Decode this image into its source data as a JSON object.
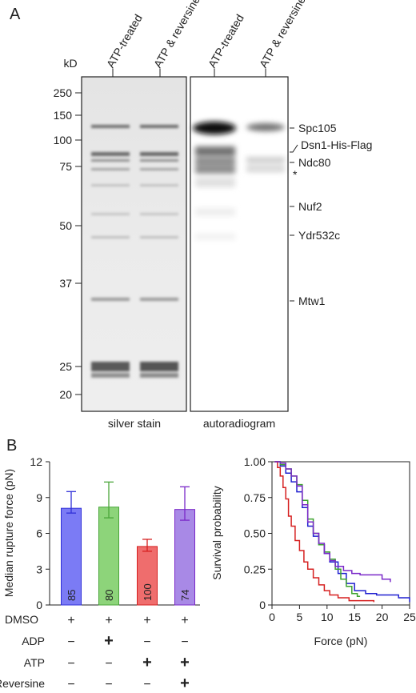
{
  "panel_a": {
    "letter": "A",
    "kd_label": "kD",
    "lanes": [
      "ATP-treated",
      "ATP & reversine",
      "ATP-treated",
      "ATP & reversine"
    ],
    "markers": [
      250,
      150,
      100,
      75,
      50,
      37,
      25,
      20
    ],
    "gel_labels": [
      "silver stain",
      "autoradiogram"
    ],
    "protein_labels": [
      "Spc105",
      "Dsn1-His-Flag",
      "Ndc80",
      "*",
      "Nuf2",
      "Ydr532c",
      "Mtw1"
    ]
  },
  "panel_b": {
    "letter": "B"
  },
  "chart_data": [
    {
      "type": "bar",
      "ylabel": "Median rupture force (pN)",
      "xlabel": "",
      "ylim": [
        0,
        12
      ],
      "yticks": [
        0,
        3,
        6,
        9,
        12
      ],
      "categories": [
        "DMSO+ADP",
        "DMSO+ADP",
        "DMSO+ATP",
        "DMSO+ATP+Reversine"
      ],
      "series": [
        {
          "values": [
            8.1,
            8.2,
            4.9,
            8.0
          ]
        }
      ],
      "error_upper": [
        9.5,
        10.3,
        5.5,
        9.9
      ],
      "error_lower": [
        7.7,
        7.3,
        4.5,
        7.1
      ],
      "bar_labels": [
        "85",
        "80",
        "100",
        "74"
      ],
      "bar_colors": [
        "#7b7bf5",
        "#8dd47a",
        "#ef6d6d",
        "#a889e6"
      ],
      "edge_colors": [
        "#3030d8",
        "#4aa63a",
        "#d62020",
        "#7a28c8"
      ],
      "conditions": {
        "rows": [
          {
            "name": "DMSO",
            "color": "#222222",
            "marks": [
              "+",
              "+",
              "+",
              "+"
            ]
          },
          {
            "name": "ADP",
            "color": "#4aa63a",
            "marks": [
              "−",
              "+",
              "−",
              "−"
            ]
          },
          {
            "name": "ATP",
            "color": "#d62020",
            "marks": [
              "−",
              "−",
              "+",
              "+"
            ]
          },
          {
            "name": "Reversine",
            "color": "#7a28c8",
            "marks": [
              "−",
              "−",
              "−",
              "+"
            ]
          }
        ]
      }
    },
    {
      "type": "line",
      "xlabel": "Force (pN)",
      "ylabel": "Survival probability",
      "xlim": [
        0,
        25
      ],
      "ylim": [
        0,
        1
      ],
      "xticks": [
        0,
        5,
        10,
        15,
        20,
        25
      ],
      "yticks": [
        "0",
        "0.25",
        "0.50",
        "0.75",
        "1.00"
      ],
      "series": [
        {
          "color": "#2020d0",
          "points": [
            [
              0.5,
              1
            ],
            [
              1.5,
              0.97
            ],
            [
              2.5,
              0.92
            ],
            [
              3.5,
              0.86
            ],
            [
              4.5,
              0.79
            ],
            [
              5.5,
              0.68
            ],
            [
              6.5,
              0.55
            ],
            [
              7.5,
              0.48
            ],
            [
              8.5,
              0.42
            ],
            [
              9.5,
              0.36
            ],
            [
              10.5,
              0.3
            ],
            [
              12,
              0.22
            ],
            [
              13.5,
              0.15
            ],
            [
              15,
              0.1
            ],
            [
              17,
              0.08
            ],
            [
              19,
              0.07
            ],
            [
              21,
              0.07
            ],
            [
              23,
              0.05
            ],
            [
              25,
              0.02
            ]
          ]
        },
        {
          "color": "#3ea32e",
          "points": [
            [
              0.5,
              1
            ],
            [
              1.5,
              0.98
            ],
            [
              2.5,
              0.95
            ],
            [
              3.5,
              0.9
            ],
            [
              4.5,
              0.84
            ],
            [
              5.5,
              0.73
            ],
            [
              6.5,
              0.6
            ],
            [
              7.5,
              0.5
            ],
            [
              8.5,
              0.42
            ],
            [
              9.5,
              0.37
            ],
            [
              10.5,
              0.32
            ],
            [
              11.5,
              0.25
            ],
            [
              12.5,
              0.18
            ],
            [
              13.5,
              0.13
            ],
            [
              14.5,
              0.08
            ],
            [
              15.5,
              0.06
            ],
            [
              16,
              0.06
            ]
          ]
        },
        {
          "color": "#d62020",
          "points": [
            [
              0.5,
              1
            ],
            [
              1,
              0.96
            ],
            [
              1.5,
              0.9
            ],
            [
              2,
              0.82
            ],
            [
              2.5,
              0.74
            ],
            [
              3,
              0.62
            ],
            [
              3.5,
              0.55
            ],
            [
              4.2,
              0.45
            ],
            [
              5,
              0.38
            ],
            [
              5.8,
              0.3
            ],
            [
              6.5,
              0.25
            ],
            [
              7.5,
              0.19
            ],
            [
              8.5,
              0.14
            ],
            [
              9.5,
              0.1
            ],
            [
              10.5,
              0.07
            ],
            [
              12,
              0.05
            ],
            [
              14,
              0.03
            ],
            [
              16,
              0.03
            ],
            [
              18.5,
              0.02
            ]
          ]
        },
        {
          "color": "#7a28c8",
          "points": [
            [
              0.5,
              1
            ],
            [
              1.5,
              0.99
            ],
            [
              2.5,
              0.95
            ],
            [
              3.5,
              0.9
            ],
            [
              4.5,
              0.83
            ],
            [
              5.5,
              0.7
            ],
            [
              6.5,
              0.58
            ],
            [
              7.5,
              0.5
            ],
            [
              8.5,
              0.43
            ],
            [
              9.5,
              0.36
            ],
            [
              10.5,
              0.31
            ],
            [
              11.5,
              0.27
            ],
            [
              13,
              0.24
            ],
            [
              14.5,
              0.22
            ],
            [
              16,
              0.21
            ],
            [
              18,
              0.21
            ],
            [
              20,
              0.18
            ],
            [
              21.5,
              0.16
            ]
          ]
        }
      ]
    }
  ]
}
